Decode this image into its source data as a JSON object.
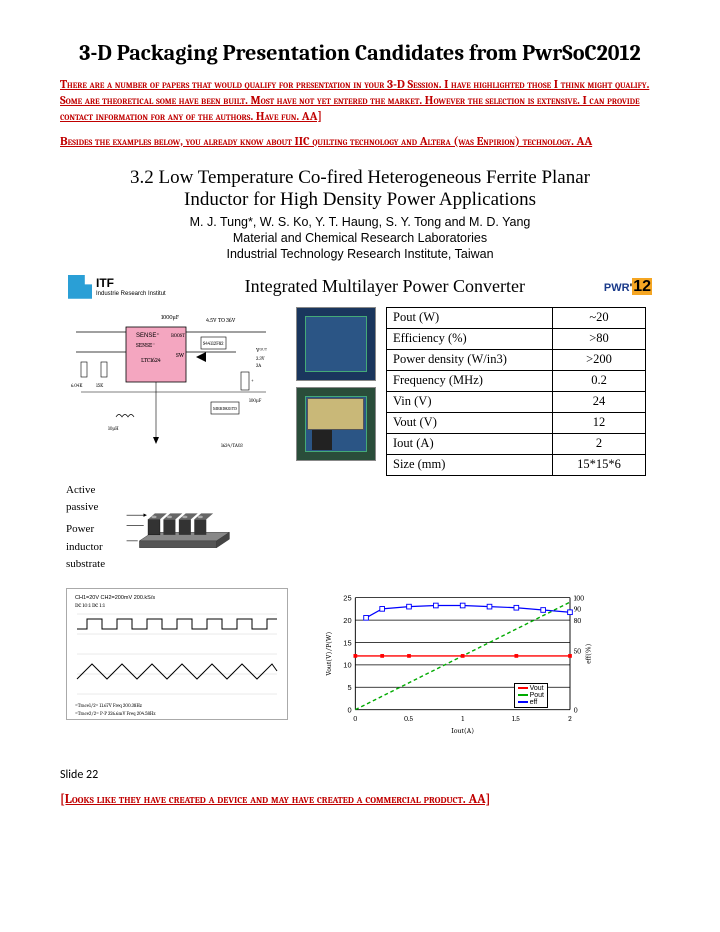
{
  "title": "3-D Packaging Presentation Candidates from PwrSoC2012",
  "intro_para": "There are a number of papers that would qualify for presentation in your 3-D Session. I have highlighted those I think might qualify. Some are theoretical some have been built. Most have not yet entered the market. However the selection is extensive.  I can provide contact information for any of the authors. Have fun. AA]",
  "intro_para2": "Besides the examples below, you already know about IIC quilting technology and Altera (was Enpirion) technology. AA",
  "section_number": "3.2",
  "section_title": "Low Temperature Co-fired Heterogeneous Ferrite Planar Inductor for High Density Power Applications",
  "authors": "M. J. Tung*, W. S. Ko, Y. T. Haung, S. Y. Tong and M. D. Yang",
  "affil1": "Material and Chemical Research Laboratories",
  "affil2": "Industrial Technology Research Institute, Taiwan",
  "slide_title": "Integrated Multilayer Power Converter",
  "itf_label": "ITF",
  "itf_sub": "Industrie\nResearch Institut",
  "pwr_label": "PWR",
  "pwr_year": "12",
  "spec_table": {
    "rows": [
      [
        "Pout (W)",
        "~20"
      ],
      [
        "Efficiency (%)",
        ">80"
      ],
      [
        "Power density (W/in3)",
        ">200"
      ],
      [
        "Frequency (MHz)",
        "0.2"
      ],
      [
        "Vin (V)",
        "24"
      ],
      [
        "Vout (V)",
        "12"
      ],
      [
        "Iout (A)",
        "2"
      ],
      [
        "Size (mm)",
        "15*15*6"
      ]
    ]
  },
  "stack_labels": {
    "l1": "Active",
    "l2": "passive",
    "l3": "Power",
    "l4": "inductor",
    "l5": "substrate"
  },
  "line_chart": {
    "xlabel": "Iout(A)",
    "ylabel": "Vout(V)/P(W)",
    "y2label": "eff(%)",
    "xlim": [
      0,
      2
    ],
    "ylim_left": [
      0,
      25
    ],
    "ylim_right": [
      0,
      100
    ],
    "xtick": [
      0,
      0.5,
      1,
      1.5,
      2
    ],
    "ytick_left": [
      0,
      5,
      10,
      15,
      20,
      25
    ],
    "ytick_right": [
      0,
      50,
      80,
      90,
      100
    ],
    "vout_color": "#ff0000",
    "pout_color": "#00aa00",
    "eff_color": "#0000ff",
    "vout": [
      [
        0,
        12
      ],
      [
        0.25,
        12
      ],
      [
        0.5,
        12
      ],
      [
        1,
        12
      ],
      [
        1.5,
        12
      ],
      [
        2,
        12
      ]
    ],
    "pout": [
      [
        0,
        0
      ],
      [
        0.5,
        6
      ],
      [
        1,
        12
      ],
      [
        1.5,
        18
      ],
      [
        2,
        24
      ]
    ],
    "eff_pct": [
      [
        0.1,
        82
      ],
      [
        0.25,
        90
      ],
      [
        0.5,
        92
      ],
      [
        0.75,
        93
      ],
      [
        1,
        93
      ],
      [
        1.25,
        92
      ],
      [
        1.5,
        91
      ],
      [
        1.75,
        89
      ],
      [
        2,
        87
      ]
    ],
    "legend": [
      "Vout",
      "Pout",
      "eff"
    ]
  },
  "wave_header": [
    "CH1=20V",
    "CH2=200mV",
    "",
    "",
    "200.kS/s"
  ],
  "wave_header2": [
    "DC 10:1",
    "DC 1:1",
    "",
    "",
    ""
  ],
  "wave_footer": [
    "Trace1/2",
    "11.67V",
    "",
    "Freq",
    "200.38Hz"
  ],
  "wave_footer2": [
    "P-P",
    "326.6mV",
    "Freq",
    "204.58Hz"
  ],
  "circuit_labels": {
    "sense": "SENSE",
    "boost": "BOOST",
    "sw": "SW",
    "chip": "LTC1624",
    "vin": "Vin",
    "vout": "Vout",
    "l": "4.5V TO 36V",
    "uf": "1000µF"
  },
  "slide_number_label": "Slide 22",
  "footer_note": "[Looks like they have created a device and may have created a commercial product. AA]",
  "colors": {
    "red_text": "#c00000",
    "itf_blue": "#2a9fd6",
    "circuit_pink": "#f4a6c0",
    "chip_blue": "#1a365d",
    "pwr_blue": "#1a3a8a",
    "pwr_orange": "#f5a623"
  }
}
